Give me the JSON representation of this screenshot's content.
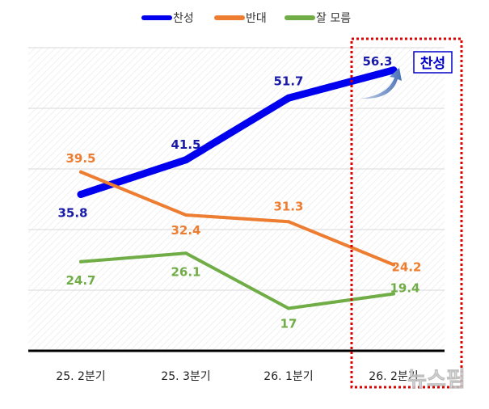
{
  "chart_data": {
    "type": "line",
    "categories": [
      "25. 2분기",
      "25. 3분기",
      "26. 1분기",
      "26. 2분기"
    ],
    "series": [
      {
        "name": "찬성",
        "values": [
          35.8,
          41.5,
          51.7,
          56.3
        ],
        "color": "#0000ee"
      },
      {
        "name": "반대",
        "values": [
          39.5,
          32.4,
          31.3,
          24.2
        ],
        "color": "#ed7d31"
      },
      {
        "name": "잘 모름",
        "values": [
          24.7,
          26.1,
          17,
          19.4
        ],
        "color": "#70ad47"
      }
    ],
    "ylim": [
      10,
      60
    ],
    "grid": true,
    "legend_placement": "top",
    "annotation": {
      "label": "찬성",
      "highlighted_category": "26. 2분기",
      "highlight_color": "#dd0000"
    },
    "title": "",
    "xlabel": "",
    "ylabel": ""
  },
  "watermark": "뉴스핌"
}
